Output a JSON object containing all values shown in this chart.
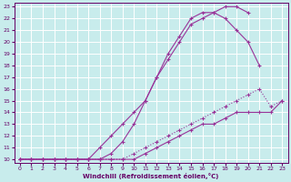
{
  "background_color": "#c8ecec",
  "line_color": "#993399",
  "grid_color": "#ffffff",
  "xlabel": "Windchill (Refroidissement éolien,°C)",
  "xlabel_color": "#660066",
  "tick_color": "#660066",
  "xlim": [
    0,
    23
  ],
  "ylim": [
    10,
    23
  ],
  "xticks": [
    0,
    1,
    2,
    3,
    4,
    5,
    6,
    7,
    8,
    9,
    10,
    11,
    12,
    13,
    14,
    15,
    16,
    17,
    18,
    19,
    20,
    21,
    22,
    23
  ],
  "yticks": [
    10,
    11,
    12,
    13,
    14,
    15,
    16,
    17,
    18,
    19,
    20,
    21,
    22,
    23
  ],
  "series": [
    {
      "x": [
        0,
        1,
        2,
        3,
        4,
        5,
        6,
        7,
        8,
        9,
        10,
        11,
        12,
        13,
        14,
        15,
        16,
        17,
        18,
        19,
        20
      ],
      "y": [
        10,
        10,
        10,
        10,
        10,
        10,
        10,
        11,
        12,
        13,
        14,
        15,
        17,
        18.5,
        20,
        21.5,
        22,
        22.5,
        23,
        23,
        22.5
      ],
      "dotted": false
    },
    {
      "x": [
        0,
        1,
        2,
        3,
        4,
        5,
        6,
        7,
        8,
        9,
        10,
        11,
        12,
        13,
        14,
        15,
        16,
        17,
        18,
        19,
        20,
        21
      ],
      "y": [
        10,
        10,
        10,
        10,
        10,
        10,
        10,
        10,
        10.5,
        11.5,
        13,
        15,
        17,
        19,
        20.5,
        22,
        22.5,
        22.5,
        22,
        21,
        20,
        18
      ],
      "dotted": false
    },
    {
      "x": [
        0,
        1,
        2,
        3,
        4,
        5,
        6,
        7,
        8,
        9,
        10,
        11,
        12,
        13,
        14,
        15,
        16,
        17,
        18,
        19,
        20,
        21,
        22,
        23
      ],
      "y": [
        10,
        10,
        10,
        10,
        10,
        10,
        10,
        10,
        10,
        10,
        10.5,
        11,
        11.5,
        12,
        12.5,
        13,
        13.5,
        14,
        14.5,
        15,
        15.5,
        16,
        14.5,
        15
      ],
      "dotted": true
    },
    {
      "x": [
        0,
        1,
        2,
        3,
        4,
        5,
        6,
        7,
        8,
        9,
        10,
        11,
        12,
        13,
        14,
        15,
        16,
        17,
        18,
        19,
        20,
        21,
        22,
        23
      ],
      "y": [
        10,
        10,
        10,
        10,
        10,
        10,
        10,
        10,
        10,
        10,
        10,
        10.5,
        11,
        11.5,
        12,
        12.5,
        13,
        13,
        13.5,
        14,
        14,
        14,
        14,
        15
      ],
      "dotted": false
    }
  ]
}
